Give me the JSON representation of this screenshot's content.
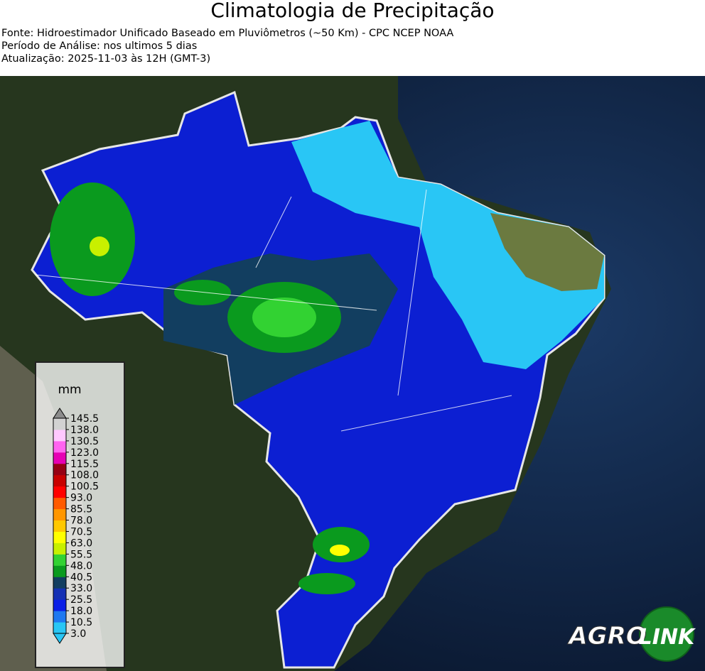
{
  "header": {
    "title": "Climatologia de Precipitação",
    "lines": [
      "Fonte: Hidroestimador Unificado Baseado em Pluviômetros (~50 Km) - CPC NCEP NOAA",
      "Período de Análise: nos ultimos 5 dias",
      "Atualização: 2025-11-03 às 12H (GMT-3)"
    ]
  },
  "colorbar": {
    "unit": "mm",
    "levels": [
      "3.0",
      "10.5",
      "18.0",
      "25.5",
      "33.0",
      "40.5",
      "48.0",
      "55.5",
      "63.0",
      "70.5",
      "78.0",
      "85.5",
      "93.0",
      "100.5",
      "108.0",
      "115.5",
      "123.0",
      "130.5",
      "138.0",
      "145.5"
    ],
    "colors": [
      "#29c6f5",
      "#1e78f0",
      "#0a1ee6",
      "#1430b4",
      "#123e60",
      "#0a9a1e",
      "#32d232",
      "#c8f000",
      "#ffff00",
      "#ffc800",
      "#ff9600",
      "#ff5a00",
      "#ff0000",
      "#c80000",
      "#960014",
      "#e600b4",
      "#ff64f0",
      "#ffc8ff",
      "#d2d2d2"
    ]
  },
  "logo": {
    "left": "AGRO",
    "right": "LINK"
  }
}
